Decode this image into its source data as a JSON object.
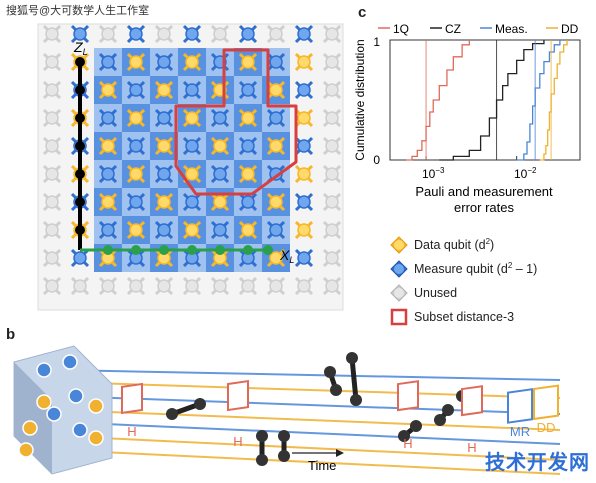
{
  "watermark": "搜狐号@大可数学人生工作室",
  "corner_logo": "技术开发网",
  "panel_a": {
    "axis_z": "Z",
    "axis_z_sub": "L",
    "axis_x": "X",
    "axis_x_sub": "L"
  },
  "panel_c": {
    "letter": "c",
    "legend": [
      "1Q",
      "CZ",
      "Meas.",
      "DD"
    ],
    "ylabel": "Cumulative distribution",
    "xlabel_line1": "Pauli and measurement",
    "xlabel_line2": "error rates",
    "ytick_top": "1",
    "ytick_bottom": "0",
    "xtick_1": "10",
    "xtick_1_exp": "−3",
    "xtick_2": "10",
    "xtick_2_exp": "−2",
    "colors": {
      "1Q": "#e06a5a",
      "CZ": "#222222",
      "Meas.": "#4a86d8",
      "DD": "#f0b030"
    }
  },
  "legend": {
    "data_qubit": "Data qubit (d",
    "data_qubit_sup": "2",
    "data_qubit_end": ")",
    "measure_qubit": "Measure qubit (d",
    "measure_qubit_sup": "2",
    "measure_qubit_end": " – 1)",
    "unused": "Unused",
    "subset": "Subset distance-3"
  },
  "panel_b": {
    "letter": "b",
    "gate_h": "H",
    "gate_mr": "MR",
    "gate_dd": "DD",
    "time_label": "Time"
  },
  "chart_data": {
    "type": "line",
    "xscale": "log",
    "xlim": [
      0.0004,
      0.05
    ],
    "ylim": [
      0,
      1
    ],
    "xlabel": "Pauli and measurement error rates",
    "ylabel": "Cumulative distribution",
    "series": [
      {
        "name": "1Q",
        "color": "#e06a5a",
        "x": [
          0.0006,
          0.0007,
          0.0008,
          0.0009,
          0.001,
          0.0011,
          0.0012,
          0.0014,
          0.0017,
          0.002,
          0.0025,
          0.003
        ],
        "y": [
          0,
          0.03,
          0.08,
          0.16,
          0.28,
          0.4,
          0.5,
          0.62,
          0.75,
          0.86,
          0.96,
          1
        ]
      },
      {
        "name": "CZ",
        "color": "#222222",
        "x": [
          0.0014,
          0.002,
          0.003,
          0.004,
          0.005,
          0.006,
          0.007,
          0.008,
          0.01,
          0.012,
          0.015,
          0.02
        ],
        "y": [
          0,
          0.03,
          0.08,
          0.2,
          0.35,
          0.5,
          0.62,
          0.72,
          0.83,
          0.92,
          0.97,
          1
        ]
      },
      {
        "name": "Meas.",
        "color": "#4a86d8",
        "x": [
          0.01,
          0.012,
          0.013,
          0.014,
          0.015,
          0.016,
          0.018,
          0.02,
          0.023,
          0.026,
          0.03
        ],
        "y": [
          0,
          0.05,
          0.15,
          0.3,
          0.45,
          0.6,
          0.72,
          0.82,
          0.9,
          0.96,
          1
        ]
      },
      {
        "name": "DD",
        "color": "#f0b030",
        "x": [
          0.018,
          0.02,
          0.021,
          0.022,
          0.023,
          0.024,
          0.026,
          0.028,
          0.03,
          0.033,
          0.036
        ],
        "y": [
          0,
          0.05,
          0.12,
          0.25,
          0.4,
          0.55,
          0.68,
          0.8,
          0.9,
          0.96,
          1
        ]
      }
    ],
    "reference_lines": {
      "1Q": 0.001,
      "CZ": 0.006,
      "Meas.": 0.016,
      "DD": 0.024
    }
  }
}
